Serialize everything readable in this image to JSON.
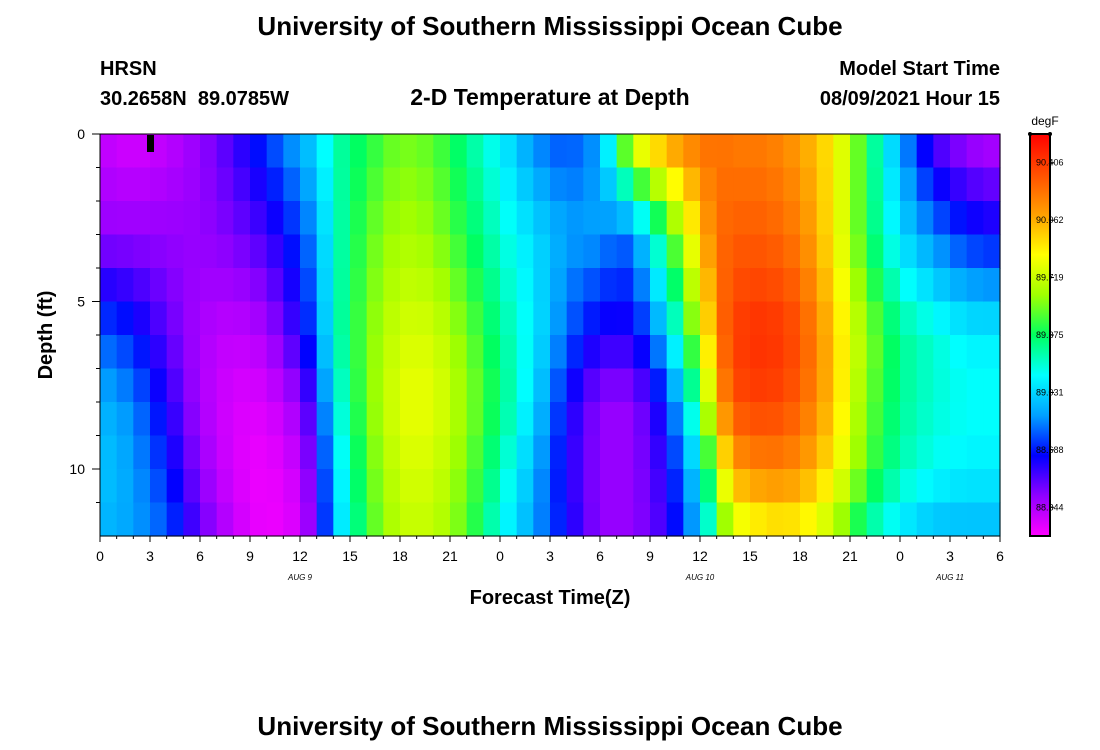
{
  "title": "University of Southern Mississippi Ocean Cube",
  "footer_title": "University of Southern Mississippi Ocean Cube",
  "station": "HRSN",
  "coords": "30.2658N  89.0785W",
  "subtitle": "2-D Temperature at Depth",
  "model_label": "Model Start Time",
  "model_time": "08/09/2021 Hour 15",
  "chart_data": {
    "type": "heatmap",
    "xlabel": "Forecast Time(Z)",
    "ylabel": "Depth (ft)",
    "xlim": [
      0,
      54
    ],
    "ylim": [
      0,
      12
    ],
    "x_ticks": [
      0,
      3,
      6,
      9,
      12,
      15,
      18,
      21,
      24,
      27,
      30,
      33,
      36,
      39,
      42,
      45,
      48,
      51,
      54
    ],
    "x_tick_labels": [
      "0",
      "3",
      "6",
      "9",
      "12",
      "15",
      "18",
      "21",
      "0",
      "3",
      "6",
      "9",
      "12",
      "15",
      "18",
      "21",
      "0",
      "3",
      "6"
    ],
    "y_ticks": [
      0,
      5,
      10
    ],
    "y_tick_labels": [
      "0",
      "5",
      "10"
    ],
    "date_labels": [
      {
        "hour": 12,
        "label": "AUG 9"
      },
      {
        "hour": 36,
        "label": "AUG 10"
      },
      {
        "hour": 51,
        "label": "AUG 11"
      }
    ],
    "now_marker_hour": 3,
    "colorbar": {
      "unit": "degF",
      "min": 88.172,
      "max": 90.578,
      "tick_values": [
        90.406,
        90.062,
        89.719,
        89.375,
        89.031,
        88.688,
        88.344
      ],
      "tick_labels": [
        "90.406",
        "90.062",
        "89.719",
        "89.375",
        "89.031",
        "88.688",
        "88.344"
      ],
      "colors": [
        "#ff00ff",
        "#9000ff",
        "#0000ff",
        "#00a0ff",
        "#00ffff",
        "#00ff60",
        "#a0ff00",
        "#ffff00",
        "#ffa000",
        "#ff5000",
        "#ff0000"
      ]
    },
    "depths": [
      0,
      3,
      6,
      8,
      10,
      12
    ],
    "hours": [
      0,
      2,
      4,
      6,
      8,
      10,
      12,
      13,
      14,
      16,
      18,
      20,
      22,
      24,
      26,
      28,
      30,
      31,
      32,
      34,
      36,
      37,
      38,
      40,
      42,
      44,
      46,
      48,
      50,
      52,
      54
    ],
    "values": [
      [
        88.3,
        88.25,
        88.3,
        88.4,
        88.55,
        88.75,
        88.95,
        89.05,
        89.25,
        89.4,
        89.55,
        89.5,
        89.3,
        89.1,
        88.85,
        88.75,
        88.9,
        89.4,
        89.9,
        90.15,
        90.25,
        90.25,
        90.2,
        90.2,
        90.1,
        89.9,
        89.4,
        88.9,
        88.5,
        88.35,
        88.3
      ],
      [
        88.4,
        88.4,
        88.4,
        88.4,
        88.45,
        88.55,
        88.75,
        88.9,
        89.2,
        89.5,
        89.65,
        89.6,
        89.4,
        89.2,
        89.05,
        88.9,
        88.9,
        88.8,
        88.85,
        89.4,
        90.0,
        90.25,
        90.3,
        90.3,
        90.2,
        89.9,
        89.4,
        89.05,
        88.85,
        88.7,
        88.65
      ],
      [
        88.8,
        88.7,
        88.5,
        88.35,
        88.3,
        88.35,
        88.6,
        88.8,
        89.2,
        89.55,
        89.75,
        89.75,
        89.55,
        89.3,
        89.1,
        88.8,
        88.6,
        88.6,
        88.6,
        89.0,
        89.7,
        90.2,
        90.4,
        90.45,
        90.35,
        90.0,
        89.6,
        89.3,
        89.2,
        89.1,
        89.1
      ],
      [
        88.95,
        88.85,
        88.6,
        88.35,
        88.25,
        88.25,
        88.4,
        88.65,
        89.1,
        89.55,
        89.8,
        89.8,
        89.6,
        89.35,
        89.05,
        88.65,
        88.4,
        88.4,
        88.4,
        88.7,
        89.4,
        90.05,
        90.35,
        90.4,
        90.3,
        90.0,
        89.55,
        89.3,
        89.2,
        89.15,
        89.15
      ],
      [
        89.0,
        88.9,
        88.7,
        88.4,
        88.25,
        88.2,
        88.3,
        88.55,
        89.0,
        89.5,
        89.75,
        89.75,
        89.55,
        89.25,
        88.95,
        88.6,
        88.4,
        88.4,
        88.4,
        88.6,
        89.1,
        89.7,
        90.1,
        90.2,
        90.15,
        89.9,
        89.5,
        89.25,
        89.15,
        89.1,
        89.1
      ],
      [
        88.95,
        88.9,
        88.8,
        88.5,
        88.3,
        88.2,
        88.25,
        88.5,
        88.95,
        89.45,
        89.7,
        89.7,
        89.5,
        89.15,
        88.9,
        88.65,
        88.4,
        88.4,
        88.4,
        88.55,
        88.95,
        89.35,
        89.7,
        89.85,
        89.85,
        89.65,
        89.25,
        89.05,
        88.95,
        88.95,
        88.95
      ]
    ]
  }
}
